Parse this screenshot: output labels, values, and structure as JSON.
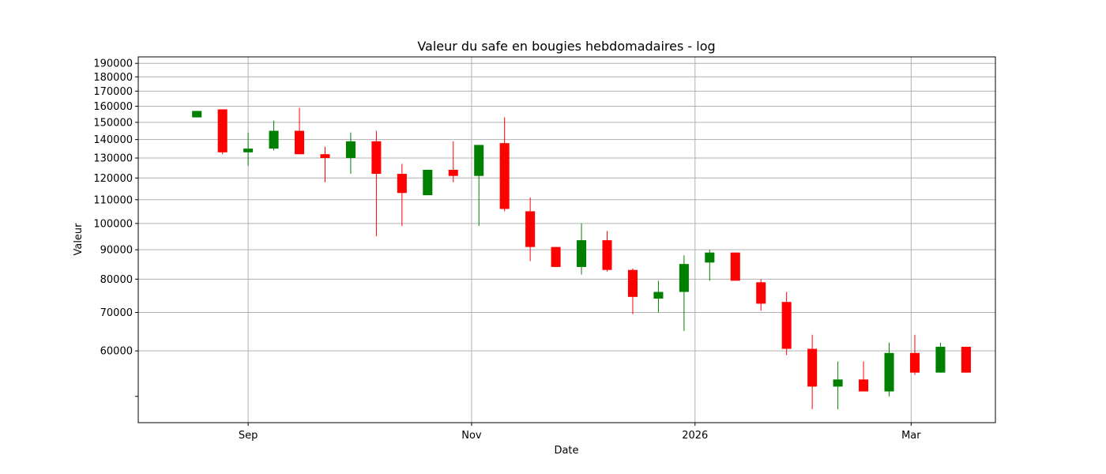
{
  "chart_data": {
    "type": "candlestick",
    "title": "Valeur du safe en bougies hebdomadaires - log",
    "xlabel": "Date",
    "ylabel": "Valeur",
    "yscale": "log",
    "ylim": [
      45000,
      195000
    ],
    "xlim": [
      "2025-08-02",
      "2026-03-24"
    ],
    "grid": true,
    "x_ticks": [
      {
        "date": "2025-09-01",
        "label": "Sep"
      },
      {
        "date": "2025-11-01",
        "label": "Nov"
      },
      {
        "date": "2026-01-01",
        "label": "2026"
      },
      {
        "date": "2026-03-01",
        "label": "Mar"
      }
    ],
    "y_ticks": [
      {
        "value": 50000,
        "label": ""
      },
      {
        "value": 60000,
        "label": "60000"
      },
      {
        "value": 70000,
        "label": "70000"
      },
      {
        "value": 80000,
        "label": "80000"
      },
      {
        "value": 90000,
        "label": "90000"
      },
      {
        "value": 100000,
        "label": "100000"
      },
      {
        "value": 110000,
        "label": "110000"
      },
      {
        "value": 120000,
        "label": "120000"
      },
      {
        "value": 130000,
        "label": "130000"
      },
      {
        "value": 140000,
        "label": "140000"
      },
      {
        "value": 150000,
        "label": "150000"
      },
      {
        "value": 160000,
        "label": "160000"
      },
      {
        "value": 170000,
        "label": "170000"
      },
      {
        "value": 180000,
        "label": "180000"
      },
      {
        "value": 190000,
        "label": "190000"
      }
    ],
    "colors": {
      "up": "#008000",
      "down": "#ff0000",
      "grid": "#b0b0b0"
    },
    "candles": [
      {
        "date": "2025-08-18",
        "open": 153000,
        "high": 157000,
        "low": 153000,
        "close": 157000
      },
      {
        "date": "2025-08-25",
        "open": 158000,
        "high": 158000,
        "low": 132000,
        "close": 133000
      },
      {
        "date": "2025-09-01",
        "open": 133000,
        "high": 144000,
        "low": 126000,
        "close": 135000
      },
      {
        "date": "2025-09-08",
        "open": 135000,
        "high": 151000,
        "low": 134000,
        "close": 145000
      },
      {
        "date": "2025-09-15",
        "open": 145000,
        "high": 159000,
        "low": 132000,
        "close": 132000
      },
      {
        "date": "2025-09-22",
        "open": 132000,
        "high": 136000,
        "low": 118000,
        "close": 130000
      },
      {
        "date": "2025-09-29",
        "open": 130000,
        "high": 144000,
        "low": 122000,
        "close": 139000
      },
      {
        "date": "2025-10-06",
        "open": 139000,
        "high": 145000,
        "low": 95000,
        "close": 122000
      },
      {
        "date": "2025-10-13",
        "open": 122000,
        "high": 127000,
        "low": 99000,
        "close": 113000
      },
      {
        "date": "2025-10-20",
        "open": 112000,
        "high": 124000,
        "low": 112000,
        "close": 124000
      },
      {
        "date": "2025-10-27",
        "open": 124000,
        "high": 139000,
        "low": 118000,
        "close": 121000
      },
      {
        "date": "2025-11-03",
        "open": 121000,
        "high": 137000,
        "low": 99000,
        "close": 137000
      },
      {
        "date": "2025-11-10",
        "open": 138000,
        "high": 153000,
        "low": 105000,
        "close": 106000
      },
      {
        "date": "2025-11-17",
        "open": 105000,
        "high": 111000,
        "low": 86000,
        "close": 91000
      },
      {
        "date": "2025-11-24",
        "open": 91000,
        "high": 91000,
        "low": 84000,
        "close": 84000
      },
      {
        "date": "2025-12-01",
        "open": 84000,
        "high": 100000,
        "low": 81500,
        "close": 93500
      },
      {
        "date": "2025-12-08",
        "open": 93500,
        "high": 97000,
        "low": 82500,
        "close": 83000
      },
      {
        "date": "2025-12-15",
        "open": 83000,
        "high": 83500,
        "low": 69500,
        "close": 74500
      },
      {
        "date": "2025-12-22",
        "open": 74000,
        "high": 79500,
        "low": 70000,
        "close": 76000
      },
      {
        "date": "2025-12-29",
        "open": 76000,
        "high": 88000,
        "low": 65000,
        "close": 85000
      },
      {
        "date": "2026-01-05",
        "open": 85500,
        "high": 90000,
        "low": 79500,
        "close": 89000
      },
      {
        "date": "2026-01-12",
        "open": 89000,
        "high": 89000,
        "low": 79500,
        "close": 79500
      },
      {
        "date": "2026-01-19",
        "open": 79000,
        "high": 80000,
        "low": 70500,
        "close": 72500
      },
      {
        "date": "2026-01-26",
        "open": 73000,
        "high": 76000,
        "low": 59000,
        "close": 60500
      },
      {
        "date": "2026-02-02",
        "open": 60500,
        "high": 64000,
        "low": 47500,
        "close": 52000
      },
      {
        "date": "2026-02-09",
        "open": 52000,
        "high": 57500,
        "low": 47500,
        "close": 53500
      },
      {
        "date": "2026-02-16",
        "open": 53500,
        "high": 57500,
        "low": 51000,
        "close": 51000
      },
      {
        "date": "2026-02-23",
        "open": 51000,
        "high": 62000,
        "low": 50000,
        "close": 59500
      },
      {
        "date": "2026-03-02",
        "open": 59500,
        "high": 64000,
        "low": 54500,
        "close": 55000
      },
      {
        "date": "2026-03-09",
        "open": 55000,
        "high": 62000,
        "low": 55000,
        "close": 61000
      },
      {
        "date": "2026-03-16",
        "open": 61000,
        "high": 61000,
        "low": 55000,
        "close": 55000
      }
    ]
  }
}
